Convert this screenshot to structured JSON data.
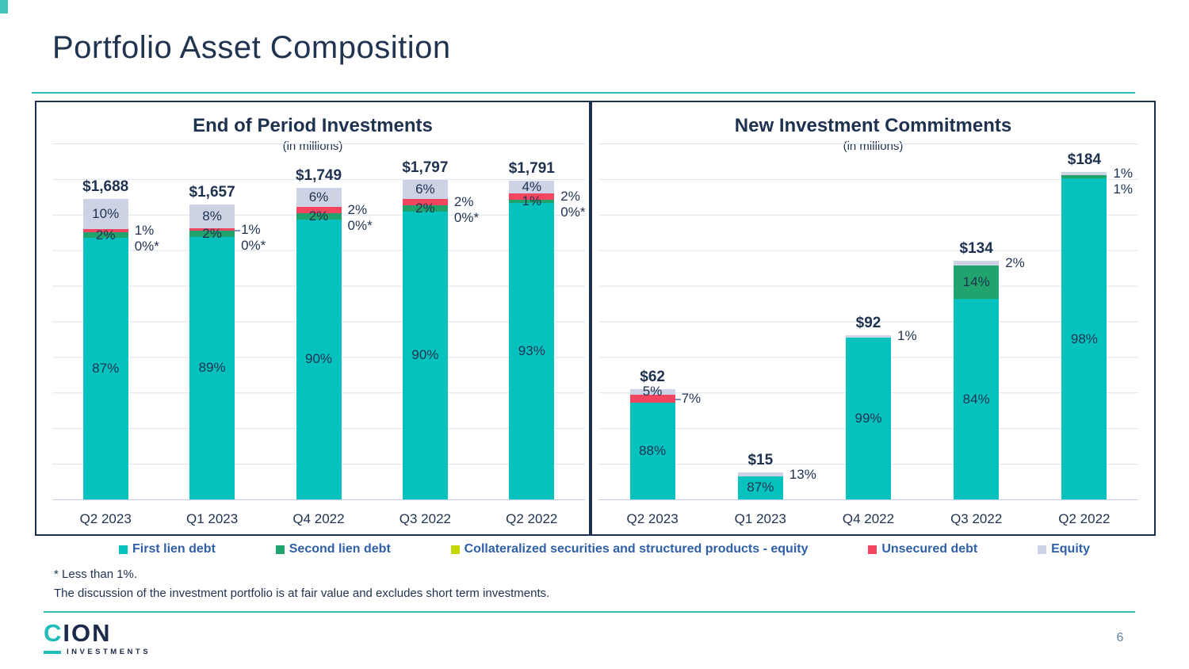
{
  "page": {
    "title": "Portfolio Asset Composition",
    "page_number": "6",
    "footnote_1": "* Less than 1%.",
    "footnote_2": "The discussion of the investment portfolio is at fair value and excludes short term investments."
  },
  "logo": {
    "brand_c": "C",
    "brand_rest": "ION",
    "sub": "INVESTMENTS"
  },
  "colors": {
    "first_lien_debt": "#06c2bf",
    "second_lien_debt": "#21a36d",
    "collateralized_securities": "#c3d600",
    "unsecured_debt": "#f3455f",
    "equity": "#cdd3e4",
    "accent_teal": "#2bbebd",
    "navy": "#1e3250",
    "legend_text": "#2e5fa8",
    "page_number": "#64809f"
  },
  "legend": [
    {
      "key": "first_lien_debt",
      "label": "First lien debt"
    },
    {
      "key": "second_lien_debt",
      "label": "Second lien debt"
    },
    {
      "key": "collateralized_securities",
      "label": "Collateralized securities and structured products - equity"
    },
    {
      "key": "unsecured_debt",
      "label": "Unsecured debt"
    },
    {
      "key": "equity",
      "label": "Equity"
    }
  ],
  "chart_data": [
    {
      "id": "end-of-period-investments",
      "type": "bar",
      "subtype": "stacked-percent",
      "title": "End of Period Investments",
      "subtitle": "(in millions)",
      "axis_max": 2000,
      "gridline_step": 200,
      "grid": true,
      "categories": [
        "Q2 2023",
        "Q1 2023",
        "Q4 2022",
        "Q3 2022",
        "Q2 2022"
      ],
      "bars": [
        {
          "category": "Q2 2023",
          "total_label": "$1,688",
          "total_value": 1688,
          "segments": [
            {
              "series": "first_lien_debt",
              "pct": 87,
              "label": "87%",
              "label_pos": "inside"
            },
            {
              "series": "second_lien_debt",
              "pct": 2,
              "label": "2%",
              "label_pos": "inside"
            },
            {
              "series": "collateralized_securities",
              "pct": 0,
              "label": "0%*",
              "label_pos": "outside"
            },
            {
              "series": "unsecured_debt",
              "pct": 1,
              "label": "1%",
              "label_pos": "outside"
            },
            {
              "series": "equity",
              "pct": 10,
              "label": "10%",
              "label_pos": "inside"
            }
          ]
        },
        {
          "category": "Q1 2023",
          "total_label": "$1,657",
          "total_value": 1657,
          "segments": [
            {
              "series": "first_lien_debt",
              "pct": 89,
              "label": "89%",
              "label_pos": "inside"
            },
            {
              "series": "second_lien_debt",
              "pct": 2,
              "label": "2%",
              "label_pos": "inside"
            },
            {
              "series": "collateralized_securities",
              "pct": 0,
              "label": "0%*",
              "label_pos": "outside"
            },
            {
              "series": "unsecured_debt",
              "pct": 1,
              "label": "1%",
              "label_pos": "outside",
              "leader": true
            },
            {
              "series": "equity",
              "pct": 8,
              "label": "8%",
              "label_pos": "inside"
            }
          ]
        },
        {
          "category": "Q4 2022",
          "total_label": "$1,749",
          "total_value": 1749,
          "segments": [
            {
              "series": "first_lien_debt",
              "pct": 90,
              "label": "90%",
              "label_pos": "inside"
            },
            {
              "series": "second_lien_debt",
              "pct": 2,
              "label": "2%",
              "label_pos": "inside"
            },
            {
              "series": "collateralized_securities",
              "pct": 0,
              "label": "0%*",
              "label_pos": "outside"
            },
            {
              "series": "unsecured_debt",
              "pct": 2,
              "label": "2%",
              "label_pos": "outside"
            },
            {
              "series": "equity",
              "pct": 6,
              "label": "6%",
              "label_pos": "inside"
            }
          ]
        },
        {
          "category": "Q3 2022",
          "total_label": "$1,797",
          "total_value": 1797,
          "segments": [
            {
              "series": "first_lien_debt",
              "pct": 90,
              "label": "90%",
              "label_pos": "inside"
            },
            {
              "series": "second_lien_debt",
              "pct": 2,
              "label": "2%",
              "label_pos": "inside"
            },
            {
              "series": "collateralized_securities",
              "pct": 0,
              "label": "0%*",
              "label_pos": "outside"
            },
            {
              "series": "unsecured_debt",
              "pct": 2,
              "label": "2%",
              "label_pos": "outside"
            },
            {
              "series": "equity",
              "pct": 6,
              "label": "6%",
              "label_pos": "inside"
            }
          ]
        },
        {
          "category": "Q2 2022",
          "total_label": "$1,791",
          "total_value": 1791,
          "segments": [
            {
              "series": "first_lien_debt",
              "pct": 93,
              "label": "93%",
              "label_pos": "inside"
            },
            {
              "series": "second_lien_debt",
              "pct": 1,
              "label": "1%",
              "label_pos": "inside"
            },
            {
              "series": "collateralized_securities",
              "pct": 0,
              "label": "0%*",
              "label_pos": "outside"
            },
            {
              "series": "unsecured_debt",
              "pct": 2,
              "label": "2%",
              "label_pos": "outside"
            },
            {
              "series": "equity",
              "pct": 4,
              "label": "4%",
              "label_pos": "inside"
            }
          ]
        }
      ]
    },
    {
      "id": "new-investment-commitments",
      "type": "bar",
      "subtype": "stacked-percent",
      "title": "New Investment Commitments",
      "subtitle": "(in millions)",
      "axis_max": 200,
      "gridline_step": 20,
      "grid": true,
      "categories": [
        "Q2 2023",
        "Q1 2023",
        "Q4 2022",
        "Q3 2022",
        "Q2 2022"
      ],
      "bars": [
        {
          "category": "Q2 2023",
          "total_label": "$62",
          "total_value": 62,
          "segments": [
            {
              "series": "first_lien_debt",
              "pct": 88,
              "label": "88%",
              "label_pos": "inside"
            },
            {
              "series": "unsecured_debt",
              "pct": 7,
              "label": "7%",
              "label_pos": "outside",
              "leader": true
            },
            {
              "series": "equity",
              "pct": 5,
              "label": "5%",
              "label_pos": "inside"
            }
          ]
        },
        {
          "category": "Q1 2023",
          "total_label": "$15",
          "total_value": 15,
          "segments": [
            {
              "series": "first_lien_debt",
              "pct": 87,
              "label": "87%",
              "label_pos": "inside"
            },
            {
              "series": "equity",
              "pct": 13,
              "label": "13%",
              "label_pos": "outside"
            }
          ]
        },
        {
          "category": "Q4 2022",
          "total_label": "$92",
          "total_value": 92,
          "segments": [
            {
              "series": "first_lien_debt",
              "pct": 99,
              "label": "99%",
              "label_pos": "inside"
            },
            {
              "series": "equity",
              "pct": 1,
              "label": "1%",
              "label_pos": "outside"
            }
          ]
        },
        {
          "category": "Q3 2022",
          "total_label": "$134",
          "total_value": 134,
          "segments": [
            {
              "series": "first_lien_debt",
              "pct": 84,
              "label": "84%",
              "label_pos": "inside"
            },
            {
              "series": "second_lien_debt",
              "pct": 14,
              "label": "14%",
              "label_pos": "inside"
            },
            {
              "series": "equity",
              "pct": 2,
              "label": "2%",
              "label_pos": "outside"
            }
          ]
        },
        {
          "category": "Q2 2022",
          "total_label": "$184",
          "total_value": 184,
          "segments": [
            {
              "series": "first_lien_debt",
              "pct": 98,
              "label": "98%",
              "label_pos": "inside"
            },
            {
              "series": "second_lien_debt",
              "pct": 1,
              "label": "1%",
              "label_pos": "outside"
            },
            {
              "series": "equity",
              "pct": 1,
              "label": "1%",
              "label_pos": "outside"
            }
          ]
        }
      ]
    }
  ]
}
